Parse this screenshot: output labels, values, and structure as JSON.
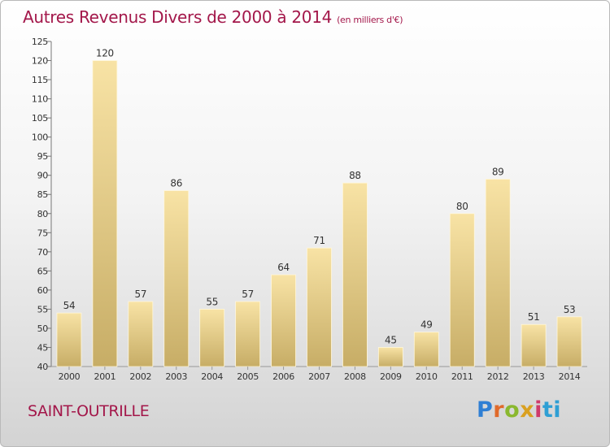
{
  "header": {
    "title": "Autres Revenus Divers de 2000 à 2014",
    "unit": "(en milliers d'€)"
  },
  "footer": {
    "town": "SAINT-OUTRILLE",
    "brand_letters": [
      "P",
      "r",
      "o",
      "x",
      "i",
      "ti"
    ]
  },
  "colors": {
    "title": "#a3174a",
    "bar_light": "#f8e3a5",
    "bar_dark": "#c7ad66"
  },
  "chart_data": {
    "type": "bar",
    "categories": [
      "2000",
      "2001",
      "2002",
      "2003",
      "2004",
      "2005",
      "2006",
      "2007",
      "2008",
      "2009",
      "2010",
      "2011",
      "2012",
      "2013",
      "2014"
    ],
    "values": [
      54,
      120,
      57,
      86,
      55,
      57,
      64,
      71,
      88,
      45,
      49,
      80,
      89,
      51,
      53
    ],
    "ylim": [
      40,
      125
    ],
    "yticks": [
      40,
      45,
      50,
      55,
      60,
      65,
      70,
      75,
      80,
      85,
      90,
      95,
      100,
      105,
      110,
      115,
      120,
      125
    ],
    "grid": false,
    "data_labels": true
  }
}
